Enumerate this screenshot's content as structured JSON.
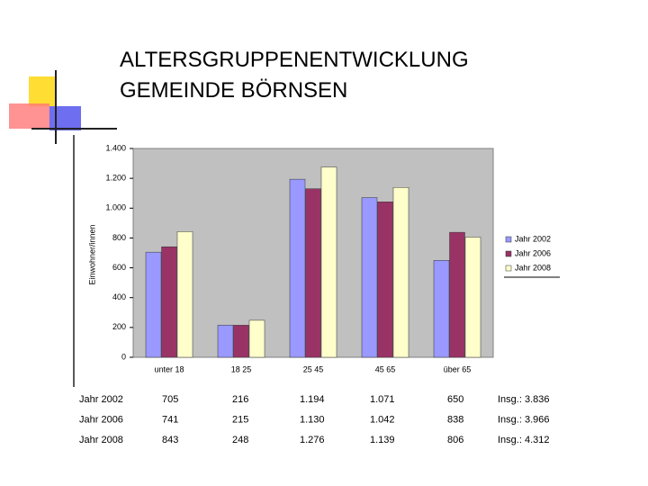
{
  "header": {
    "title_lines": [
      "ALTERSGRUPPENENTWICKLUNG",
      "GEMEINDE BÖRNSEN"
    ]
  },
  "chart_data": {
    "type": "bar",
    "y_label": "Einwohner/innen",
    "categories": [
      "unter 18",
      "18 25",
      "25 45",
      "45 65",
      "über 65"
    ],
    "series": [
      {
        "name": "Jahr 2002",
        "color": "#9999ff",
        "values": [
          705,
          216,
          1194,
          1071,
          650
        ]
      },
      {
        "name": "Jahr 2006",
        "color": "#993366",
        "values": [
          741,
          215,
          1130,
          1042,
          838
        ]
      },
      {
        "name": "Jahr 2008",
        "color": "#ffffcc",
        "values": [
          843,
          248,
          1276,
          1139,
          806
        ]
      }
    ],
    "ylim": [
      0,
      1400
    ],
    "yticks": [
      0,
      200,
      400,
      600,
      800,
      {
        "value": 1000,
        "label": "1.000"
      },
      {
        "value": 1200,
        "label": "1.200"
      },
      {
        "value": 1400,
        "label": "1.400"
      }
    ],
    "legend": "right",
    "plot_background": "#c0c0c0"
  },
  "table": {
    "rows": [
      [
        "Jahr 2002",
        "705",
        "216",
        "1.194",
        "1.071",
        "650",
        "Insg.: 3.836"
      ],
      [
        "Jahr 2006",
        "741",
        "215",
        "1.130",
        "1.042",
        "838",
        "Insg.: 3.966"
      ],
      [
        "Jahr 2008",
        "843",
        "248",
        "1.276",
        "1.139",
        "806",
        "Insg.: 4.312"
      ]
    ]
  }
}
